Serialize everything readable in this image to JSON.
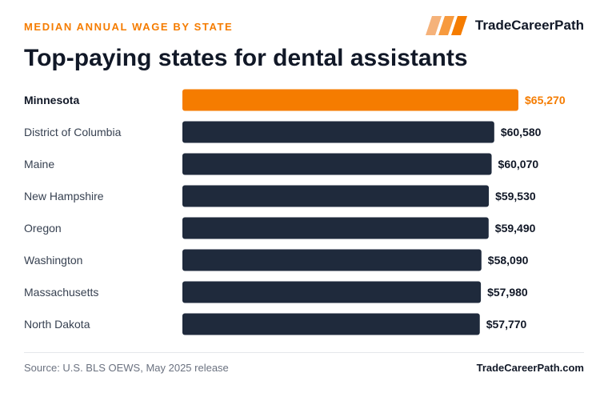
{
  "header": {
    "eyebrow": "MEDIAN ANNUAL WAGE BY STATE",
    "brand": "TradeCareerPath",
    "title": "Top-paying states for dental assistants"
  },
  "footer": {
    "source": "Source: U.S. BLS OEWS, May 2025 release",
    "site": "TradeCareerPath.com"
  },
  "colors": {
    "accent": "#f57c00",
    "bar": "#1f2a3c",
    "label": "#374151",
    "value": "#111827"
  },
  "icons": {
    "brand_logo": "slanted-stripes-logo-icon"
  },
  "chart_data": {
    "type": "bar",
    "orientation": "horizontal",
    "categories": [
      "Minnesota",
      "District of Columbia",
      "Maine",
      "New Hampshire",
      "Oregon",
      "Washington",
      "Massachusetts",
      "North Dakota"
    ],
    "values": [
      65270,
      60580,
      60070,
      59530,
      59490,
      58090,
      57980,
      57770
    ],
    "value_labels": [
      "$65,270",
      "$60,580",
      "$60,070",
      "$59,530",
      "$59,490",
      "$58,090",
      "$57,980",
      "$57,770"
    ],
    "highlight": "Minnesota",
    "xlim": [
      0,
      65270
    ],
    "grid": false,
    "legend": "none"
  }
}
